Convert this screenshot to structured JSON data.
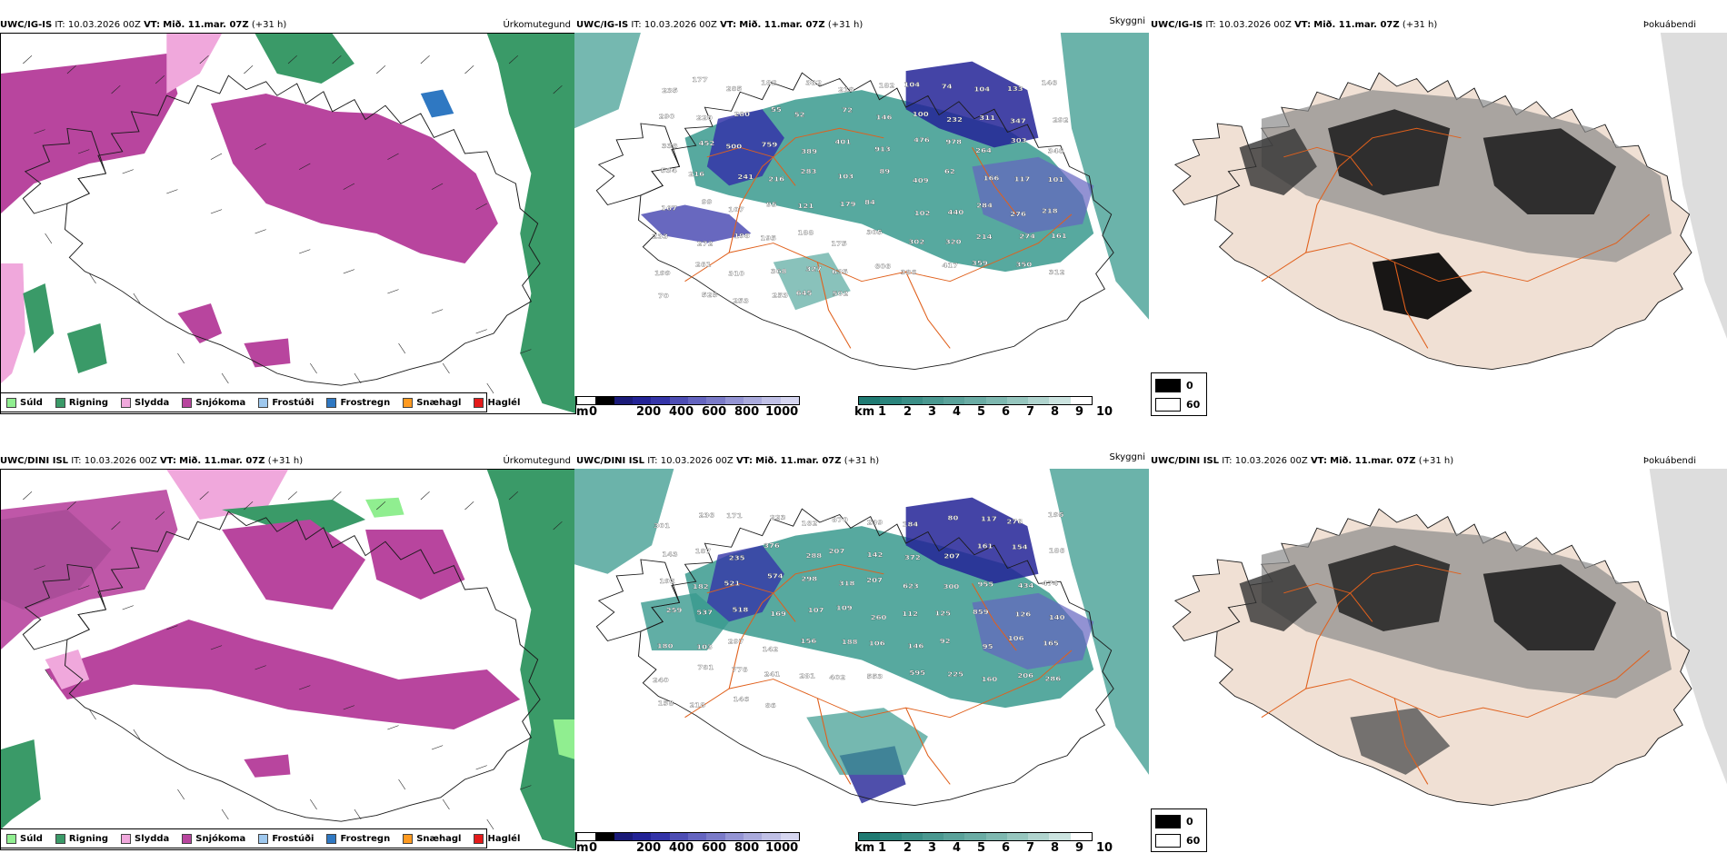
{
  "rows": [
    {
      "header": {
        "model": "UWC/IG-IS",
        "it_label": "IT:",
        "it_value": "10.03.2026 00Z",
        "vt_label": "VT:",
        "vt_value": "Mið. 11.mar. 07Z",
        "lead": "(+31 h)"
      },
      "titles": {
        "precip": "Úrkomutegund",
        "cloud": "Skyggni",
        "fog": "Þokuábendi"
      },
      "summit_labels": [
        "235",
        "177",
        "285",
        "182",
        "382",
        "219",
        "182",
        "104",
        "74",
        "104",
        "133",
        "146",
        "290",
        "220",
        "280",
        "55",
        "52",
        "72",
        "146",
        "100",
        "232",
        "311",
        "347",
        "292",
        "338",
        "452",
        "500",
        "759",
        "389",
        "401",
        "913",
        "476",
        "978",
        "264",
        "303",
        "346",
        "534",
        "216",
        "241",
        "216",
        "283",
        "103",
        "89",
        "409",
        "62",
        "166",
        "117",
        "101",
        "167",
        "99",
        "107",
        "95",
        "121",
        "179",
        "84",
        "102",
        "440",
        "284",
        "276",
        "218",
        "233",
        "272",
        "198",
        "195",
        "188",
        "175",
        "305",
        "302",
        "320",
        "214",
        "274",
        "161",
        "199",
        "261",
        "310",
        "368",
        "327",
        "635",
        "606",
        "386",
        "417",
        "359",
        "350",
        "312",
        "70",
        "525",
        "253",
        "253",
        "645",
        "502"
      ]
    },
    {
      "header": {
        "model": "UWC/DINI ISL",
        "it_label": "IT:",
        "it_value": "10.03.2026 00Z",
        "vt_label": "VT:",
        "vt_value": "Mið. 11.mar. 07Z",
        "lead": "(+31 h)"
      },
      "titles": {
        "precip": "Úrkomutegund",
        "cloud": "Skyggni",
        "fog": "Þokuábendi"
      },
      "summit_labels": [
        "301",
        "236",
        "171",
        "223",
        "162",
        "870",
        "239",
        "184",
        "80",
        "117",
        "276",
        "195",
        "143",
        "187",
        "235",
        "376",
        "288",
        "207",
        "142",
        "372",
        "207",
        "161",
        "154",
        "186",
        "192",
        "182",
        "521",
        "574",
        "298",
        "318",
        "207",
        "623",
        "300",
        "955",
        "434",
        "474",
        "259",
        "537",
        "518",
        "169",
        "107",
        "109",
        "260",
        "112",
        "125",
        "859",
        "126",
        "140",
        "180",
        "103",
        "297",
        "142",
        "156",
        "188",
        "106",
        "146",
        "92",
        "95",
        "106",
        "165",
        "240",
        "781",
        "776",
        "241",
        "281",
        "402",
        "553",
        "595",
        "225",
        "160",
        "206",
        "286",
        "158",
        "218",
        "146",
        "86"
      ]
    }
  ],
  "precip_legend": [
    {
      "label": "Súld",
      "color": "#90ee90"
    },
    {
      "label": "Rigning",
      "color": "#3a9a68"
    },
    {
      "label": "Slydda",
      "color": "#f0a8dc"
    },
    {
      "label": "Snjókoma",
      "color": "#b8459e"
    },
    {
      "label": "Frostúði",
      "color": "#9ec8ee"
    },
    {
      "label": "Frostregn",
      "color": "#2f78c2"
    },
    {
      "label": "Snæhagl",
      "color": "#ff9a20"
    },
    {
      "label": "Haglél",
      "color": "#e41a1a"
    }
  ],
  "cloud_base_bar": {
    "unit": "m",
    "ticks": [
      "0",
      "200",
      "400",
      "600",
      "800",
      "1000"
    ],
    "colors": [
      "#ffffff",
      "#000000",
      "#1a1a78",
      "#232396",
      "#3434a8",
      "#4d4db4",
      "#6464c0",
      "#7a7ac8",
      "#9494d4",
      "#aaaadc",
      "#c0c0e6",
      "#d6d6f0"
    ]
  },
  "visibility_bar": {
    "unit": "km",
    "ticks": [
      "1",
      "2",
      "3",
      "4",
      "5",
      "6",
      "7",
      "8",
      "9",
      "10"
    ],
    "colors": [
      "#1f7a72",
      "#2a847c",
      "#3a8e86",
      "#4a9890",
      "#5aa29a",
      "#6aaca4",
      "#7eb8b0",
      "#96c6be",
      "#b0d4ce",
      "#cce4e0",
      "#ffffff"
    ]
  },
  "fog_legend": [
    {
      "value": "0",
      "color": "#000000"
    },
    {
      "value": "60",
      "color": "#ffffff"
    }
  ],
  "colors": {
    "road": "#e0601c",
    "coast": "#1a1a1a",
    "sea_teal": "#3a9a8e",
    "land_fog": "#f0e0d4"
  }
}
